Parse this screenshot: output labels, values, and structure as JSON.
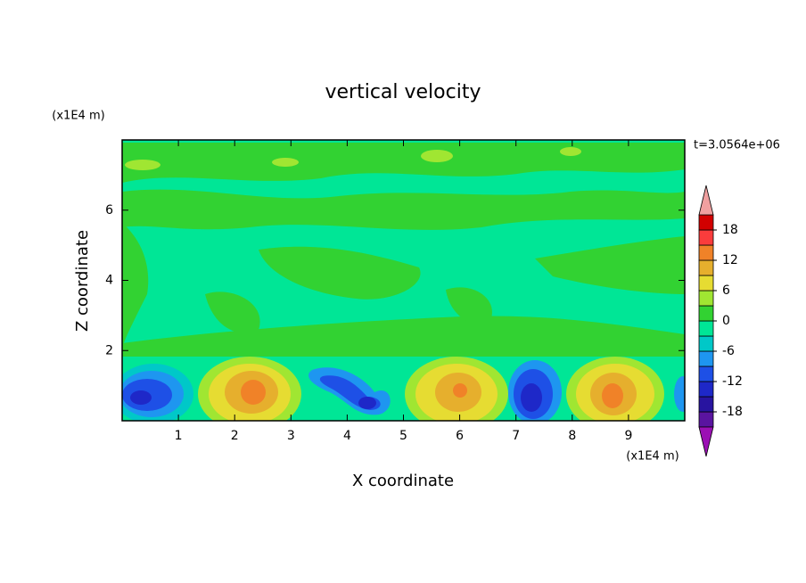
{
  "chart_data": {
    "type": "contour",
    "title": "vertical velocity",
    "x_label": "X coordinate",
    "y_label": "Z coordinate",
    "x_unit": "(x1E4 m)",
    "y_unit": "(x1E4 m)",
    "time_label": "t=3.0564e+06",
    "xlim": [
      0,
      10
    ],
    "xticks": [
      1,
      2,
      3,
      4,
      5,
      6,
      7,
      8,
      9
    ],
    "ylim": [
      0,
      8
    ],
    "yticks": [
      2,
      4,
      6
    ],
    "colorbar": {
      "levels": [
        -21,
        -18,
        -15,
        -12,
        -9,
        -6,
        -3,
        0,
        3,
        6,
        9,
        12,
        15,
        18,
        21
      ],
      "colors": [
        "#9b10b4",
        "#5a14a0",
        "#2814a0",
        "#1e28c8",
        "#1e50e6",
        "#1e96f0",
        "#00c8c8",
        "#00e696",
        "#32d232",
        "#a0e632",
        "#e6dc32",
        "#e6af2d",
        "#f08228",
        "#fa3c3c",
        "#d20000",
        "#f0a0a0"
      ],
      "ticks": [
        -18,
        -12,
        -6,
        0,
        6,
        12,
        18
      ]
    }
  }
}
